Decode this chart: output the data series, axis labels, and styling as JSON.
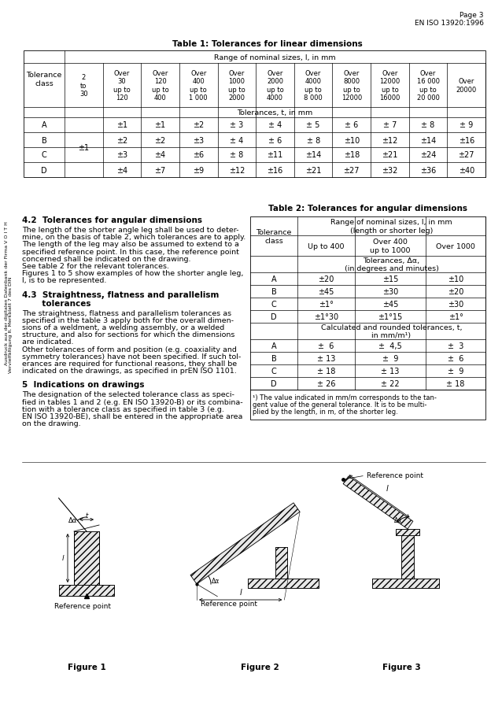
{
  "page_header": "Page 3\nEN ISO 13920:1996",
  "table1_title": "Table 1: Tolerances for linear dimensions",
  "table1_range_header": "Range of nominal sizes, l, in mm",
  "table1_tol_header": "Tolerances, t, in mm",
  "table1_col_labels": [
    "2\nto\n30",
    "Over\n30\nup to\n120",
    "Over\n120\nup to\n400",
    "Over\n400\nup to\n1 000",
    "Over\n1000\nup to\n2000",
    "Over\n2000\nup to\n4000",
    "Over\n4000\nup to\n8 000",
    "Over\n8000\nup to\n12000",
    "Over\n12000\nup to\n16000",
    "Over\n16 000\nup to\n20 000",
    "Over\n20000"
  ],
  "table1_data": [
    [
      "A",
      "±1",
      "±1",
      "±2",
      "± 3",
      "± 4",
      "± 5",
      "± 6",
      "± 7",
      "± 8",
      "± 9"
    ],
    [
      "B",
      "±2",
      "±2",
      "±3",
      "± 4",
      "± 6",
      "± 8",
      "±10",
      "±12",
      "±14",
      "±16"
    ],
    [
      "C",
      "±3",
      "±4",
      "±6",
      "± 8",
      "±11",
      "±14",
      "±18",
      "±21",
      "±24",
      "±27"
    ],
    [
      "D",
      "±4",
      "±7",
      "±9",
      "±12",
      "±16",
      "±21",
      "±27",
      "±32",
      "±36",
      "±40"
    ]
  ],
  "table1_shared_col": "±1",
  "section42_title": "4.2  Tolerances for angular dimensions",
  "section42_lines": [
    "The length of the shorter angle leg shall be used to deter-",
    "mine, on the basis of table 2, which tolerances are to apply.",
    "The length of the leg may also be assumed to extend to a",
    "specified reference point. In this case, the reference point",
    "concerned shall be indicated on the drawing.",
    "See table 2 for the relevant tolerances.",
    "Figures 1 to 5 show examples of how the shorter angle leg,",
    "l, is to be represented."
  ],
  "section43_title1": "4.3  Straightness, flatness and parallelism",
  "section43_title2": "       tolerances",
  "section43_lines": [
    "The straightness, flatness and parallelism tolerances as",
    "specified in the table 3 apply both for the overall dimen-",
    "sions of a weldment, a welding assembly, or a welded",
    "structure, and also for sections for which the dimensions",
    "are indicated.",
    "Other tolerances of form and position (e.g. coaxiality and",
    "symmetry tolerances) have not been specified. If such tol-",
    "erances are required for functional reasons, they shall be",
    "indicated on the drawings, as specified in prEN ISO 1101."
  ],
  "section5_title": "5  Indications on drawings",
  "section5_lines": [
    "The designation of the selected tolerance class as speci-",
    "fied in tables 1 and 2 (e.g. EN ISO 13920-B) or its combina-",
    "tion with a tolerance class as specified in table 3 (e.g.",
    "EN ISO 13920-BE), shall be entered in the appropriate area",
    "on the drawing."
  ],
  "table2_title": "Table 2: Tolerances for angular dimensions",
  "table2_range_header": "Range of nominal sizes, l, in mm\n(length or shorter leg)",
  "table2_col_labels": [
    "Up to 400",
    "Over 400\nup to 1000",
    "Over 1000"
  ],
  "table2_tol_deg_header": "Tolerances, Δα,\n(in degrees and minutes)",
  "table2_tol_calc_header": "Calculated and rounded tolerances, t,\nin mm/m¹)",
  "table2_deg_data": [
    [
      "A",
      "±20",
      "±15",
      "±10"
    ],
    [
      "B",
      "±45",
      "±30",
      "±20"
    ],
    [
      "C",
      "±1°",
      "±45",
      "±30"
    ],
    [
      "D",
      "±1°30",
      "±1°15",
      "±1°"
    ]
  ],
  "table2_calc_data": [
    [
      "A",
      "±  6",
      "±  4,5",
      "±  3"
    ],
    [
      "B",
      "± 13",
      "±  9",
      "±  6"
    ],
    [
      "C",
      "± 18",
      "± 13",
      "±  9"
    ],
    [
      "D",
      "± 26",
      "± 22",
      "± 18"
    ]
  ],
  "table2_footnote_lines": [
    "¹) The value indicated in mm/m corresponds to the tan-",
    "gent value of the general tolerance. It is to be multi-",
    "plied by the length, in m, of the shorter leg."
  ],
  "sidebar_line1": "Ausdruck aus der digitalen Datenbank der Firma V O I T H",
  "sidebar_line2": "Vervielfältigung lt. Merkblatt 7 des DIN",
  "figure1_label": "Figure 1",
  "figure2_label": "Figure 2",
  "figure3_label": "Figure 3",
  "ref_point_label": "Reference point"
}
